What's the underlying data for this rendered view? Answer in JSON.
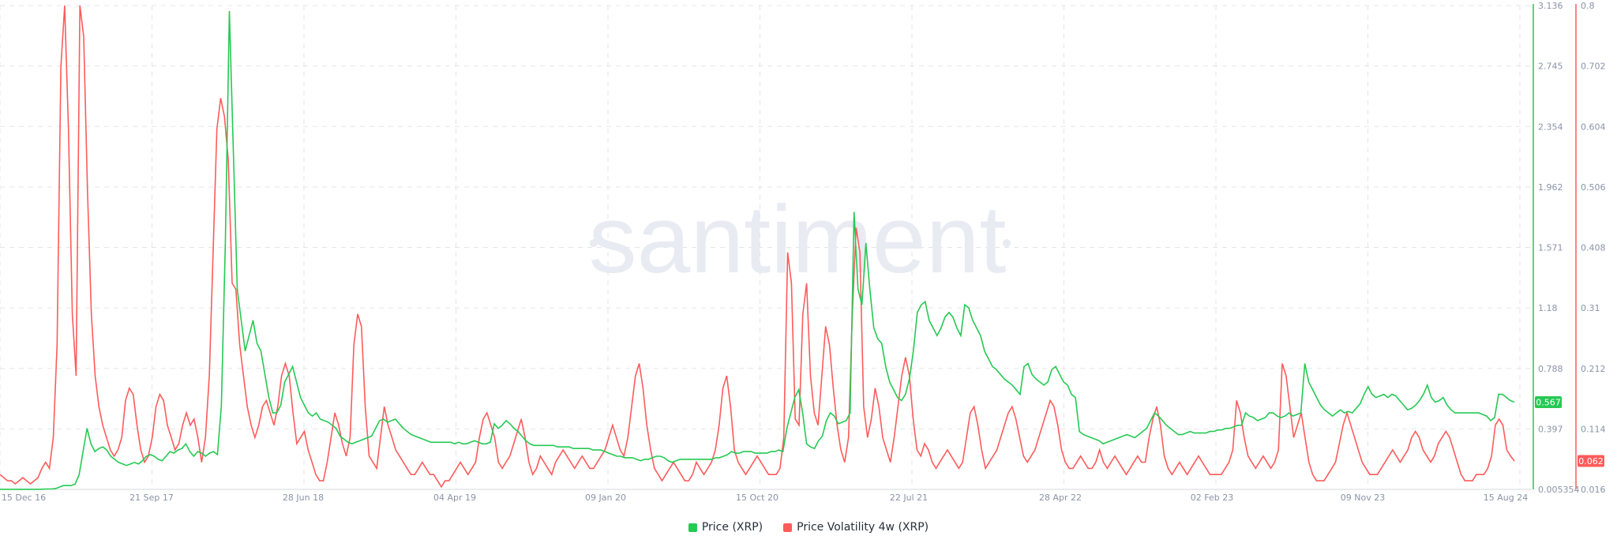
{
  "watermark": "santiment",
  "colors": {
    "price": "#26c953",
    "volatility": "#ff5b5b",
    "grid": "#e3e5e9",
    "axis_text": "#8a93a6",
    "watermark": "#e8ebf2"
  },
  "chart_data": {
    "type": "line",
    "x_ticks": [
      "15 Dec 16",
      "21 Sep 17",
      "28 Jun 18",
      "04 Apr 19",
      "09 Jan 20",
      "15 Oct 20",
      "22 Jul 21",
      "28 Apr 22",
      "02 Feb 23",
      "09 Nov 23",
      "15 Aug 24"
    ],
    "x_start_label": "15 Dec 16",
    "x_end_label": "15 Aug 24",
    "grid": true,
    "legend_position": "bottom-center",
    "axes": {
      "price": {
        "ticks": [
          "0.005354",
          "0.397",
          "0.788",
          "1.18",
          "1.571",
          "1.962",
          "2.354",
          "2.745",
          "3.136"
        ],
        "range": [
          0.005354,
          3.136
        ]
      },
      "volatility": {
        "ticks": [
          "0.016",
          "0.114",
          "0.212",
          "0.31",
          "0.408",
          "0.506",
          "0.604",
          "0.702",
          "0.8"
        ],
        "range": [
          0.016,
          0.8
        ]
      }
    },
    "series": [
      {
        "name": "Price (XRP)",
        "axis": "price",
        "last_label": "0.567",
        "values": [
          0.006,
          0.006,
          0.006,
          0.006,
          0.006,
          0.006,
          0.006,
          0.006,
          0.006,
          0.006,
          0.006,
          0.007,
          0.008,
          0.008,
          0.01,
          0.02,
          0.03,
          0.03,
          0.03,
          0.04,
          0.1,
          0.25,
          0.4,
          0.3,
          0.25,
          0.27,
          0.28,
          0.26,
          0.22,
          0.2,
          0.18,
          0.17,
          0.16,
          0.17,
          0.18,
          0.17,
          0.19,
          0.22,
          0.23,
          0.22,
          0.2,
          0.19,
          0.22,
          0.25,
          0.24,
          0.26,
          0.27,
          0.3,
          0.25,
          0.22,
          0.25,
          0.24,
          0.22,
          0.24,
          0.25,
          0.23,
          0.55,
          1.6,
          3.1,
          2.2,
          1.3,
          1.1,
          0.9,
          1.0,
          1.1,
          0.95,
          0.9,
          0.75,
          0.6,
          0.5,
          0.5,
          0.55,
          0.7,
          0.75,
          0.8,
          0.7,
          0.6,
          0.55,
          0.5,
          0.48,
          0.5,
          0.46,
          0.45,
          0.44,
          0.42,
          0.4,
          0.35,
          0.33,
          0.31,
          0.3,
          0.31,
          0.32,
          0.33,
          0.34,
          0.35,
          0.4,
          0.45,
          0.46,
          0.44,
          0.45,
          0.46,
          0.43,
          0.4,
          0.38,
          0.36,
          0.35,
          0.34,
          0.33,
          0.32,
          0.31,
          0.31,
          0.31,
          0.31,
          0.31,
          0.31,
          0.3,
          0.31,
          0.3,
          0.3,
          0.31,
          0.32,
          0.31,
          0.3,
          0.3,
          0.31,
          0.43,
          0.4,
          0.42,
          0.45,
          0.43,
          0.4,
          0.38,
          0.35,
          0.32,
          0.3,
          0.29,
          0.29,
          0.29,
          0.29,
          0.29,
          0.29,
          0.28,
          0.28,
          0.28,
          0.28,
          0.27,
          0.27,
          0.27,
          0.27,
          0.27,
          0.26,
          0.26,
          0.26,
          0.25,
          0.24,
          0.23,
          0.22,
          0.22,
          0.21,
          0.21,
          0.21,
          0.2,
          0.19,
          0.2,
          0.2,
          0.21,
          0.22,
          0.22,
          0.21,
          0.19,
          0.18,
          0.19,
          0.2,
          0.2,
          0.2,
          0.2,
          0.2,
          0.2,
          0.2,
          0.2,
          0.2,
          0.21,
          0.21,
          0.22,
          0.23,
          0.25,
          0.24,
          0.24,
          0.25,
          0.25,
          0.25,
          0.24,
          0.24,
          0.24,
          0.24,
          0.25,
          0.25,
          0.26,
          0.25,
          0.4,
          0.5,
          0.6,
          0.65,
          0.5,
          0.3,
          0.28,
          0.27,
          0.32,
          0.35,
          0.45,
          0.5,
          0.48,
          0.43,
          0.44,
          0.45,
          0.5,
          1.8,
          1.3,
          1.2,
          1.6,
          1.3,
          1.05,
          0.98,
          0.95,
          0.8,
          0.7,
          0.65,
          0.6,
          0.58,
          0.62,
          0.72,
          0.9,
          1.15,
          1.2,
          1.22,
          1.1,
          1.05,
          1.0,
          1.05,
          1.12,
          1.15,
          1.12,
          1.05,
          1.0,
          1.2,
          1.18,
          1.1,
          1.05,
          1.0,
          0.9,
          0.85,
          0.8,
          0.78,
          0.75,
          0.72,
          0.7,
          0.68,
          0.65,
          0.62,
          0.8,
          0.82,
          0.75,
          0.72,
          0.7,
          0.68,
          0.7,
          0.78,
          0.8,
          0.75,
          0.7,
          0.68,
          0.62,
          0.6,
          0.38,
          0.36,
          0.35,
          0.34,
          0.33,
          0.32,
          0.3,
          0.31,
          0.32,
          0.33,
          0.34,
          0.35,
          0.36,
          0.35,
          0.34,
          0.36,
          0.38,
          0.4,
          0.45,
          0.5,
          0.48,
          0.45,
          0.42,
          0.4,
          0.38,
          0.36,
          0.36,
          0.37,
          0.38,
          0.37,
          0.37,
          0.37,
          0.37,
          0.38,
          0.38,
          0.39,
          0.39,
          0.4,
          0.4,
          0.41,
          0.42,
          0.42,
          0.5,
          0.48,
          0.47,
          0.45,
          0.46,
          0.47,
          0.5,
          0.5,
          0.48,
          0.47,
          0.48,
          0.5,
          0.48,
          0.49,
          0.5,
          0.82,
          0.7,
          0.65,
          0.6,
          0.55,
          0.52,
          0.5,
          0.48,
          0.5,
          0.52,
          0.5,
          0.51,
          0.5,
          0.53,
          0.56,
          0.62,
          0.67,
          0.62,
          0.6,
          0.61,
          0.62,
          0.6,
          0.62,
          0.61,
          0.58,
          0.55,
          0.52,
          0.53,
          0.55,
          0.58,
          0.62,
          0.68,
          0.6,
          0.57,
          0.58,
          0.6,
          0.55,
          0.52,
          0.5,
          0.5,
          0.5,
          0.5,
          0.5,
          0.5,
          0.5,
          0.49,
          0.48,
          0.45,
          0.47,
          0.62,
          0.62,
          0.6,
          0.58,
          0.57
        ]
      },
      {
        "name": "Price Volatility 4w (XRP)",
        "axis": "volatility",
        "last_label": "0.062",
        "values": [
          0.04,
          0.035,
          0.03,
          0.03,
          0.025,
          0.03,
          0.035,
          0.03,
          0.025,
          0.03,
          0.035,
          0.05,
          0.06,
          0.05,
          0.1,
          0.25,
          0.7,
          0.8,
          0.6,
          0.3,
          0.2,
          0.8,
          0.75,
          0.5,
          0.3,
          0.2,
          0.15,
          0.12,
          0.1,
          0.08,
          0.07,
          0.08,
          0.1,
          0.16,
          0.18,
          0.17,
          0.12,
          0.08,
          0.06,
          0.07,
          0.1,
          0.15,
          0.17,
          0.16,
          0.12,
          0.1,
          0.08,
          0.09,
          0.12,
          0.14,
          0.12,
          0.13,
          0.1,
          0.06,
          0.1,
          0.2,
          0.4,
          0.6,
          0.65,
          0.62,
          0.55,
          0.35,
          0.34,
          0.25,
          0.2,
          0.15,
          0.12,
          0.1,
          0.12,
          0.15,
          0.16,
          0.14,
          0.12,
          0.15,
          0.2,
          0.22,
          0.2,
          0.14,
          0.09,
          0.1,
          0.11,
          0.08,
          0.06,
          0.04,
          0.03,
          0.03,
          0.06,
          0.1,
          0.14,
          0.12,
          0.09,
          0.07,
          0.1,
          0.25,
          0.3,
          0.28,
          0.15,
          0.07,
          0.06,
          0.05,
          0.1,
          0.15,
          0.12,
          0.1,
          0.08,
          0.07,
          0.06,
          0.05,
          0.04,
          0.04,
          0.05,
          0.06,
          0.05,
          0.04,
          0.04,
          0.03,
          0.02,
          0.03,
          0.03,
          0.04,
          0.05,
          0.06,
          0.05,
          0.04,
          0.05,
          0.06,
          0.1,
          0.13,
          0.14,
          0.12,
          0.1,
          0.06,
          0.05,
          0.06,
          0.07,
          0.09,
          0.11,
          0.13,
          0.1,
          0.06,
          0.04,
          0.05,
          0.07,
          0.06,
          0.05,
          0.04,
          0.06,
          0.07,
          0.08,
          0.07,
          0.06,
          0.05,
          0.06,
          0.07,
          0.06,
          0.05,
          0.05,
          0.06,
          0.07,
          0.08,
          0.1,
          0.12,
          0.1,
          0.08,
          0.07,
          0.1,
          0.15,
          0.2,
          0.22,
          0.18,
          0.12,
          0.08,
          0.05,
          0.04,
          0.03,
          0.04,
          0.05,
          0.06,
          0.05,
          0.04,
          0.03,
          0.03,
          0.04,
          0.06,
          0.05,
          0.04,
          0.05,
          0.06,
          0.08,
          0.12,
          0.18,
          0.2,
          0.15,
          0.08,
          0.06,
          0.05,
          0.04,
          0.05,
          0.06,
          0.07,
          0.06,
          0.05,
          0.04,
          0.04,
          0.04,
          0.05,
          0.1,
          0.4,
          0.35,
          0.13,
          0.12,
          0.3,
          0.35,
          0.2,
          0.14,
          0.12,
          0.2,
          0.28,
          0.25,
          0.18,
          0.12,
          0.08,
          0.06,
          0.1,
          0.3,
          0.44,
          0.4,
          0.15,
          0.1,
          0.13,
          0.18,
          0.15,
          0.1,
          0.08,
          0.06,
          0.1,
          0.15,
          0.2,
          0.23,
          0.2,
          0.13,
          0.08,
          0.07,
          0.09,
          0.08,
          0.06,
          0.05,
          0.06,
          0.07,
          0.08,
          0.07,
          0.06,
          0.05,
          0.06,
          0.1,
          0.14,
          0.15,
          0.12,
          0.08,
          0.05,
          0.06,
          0.07,
          0.08,
          0.1,
          0.12,
          0.14,
          0.15,
          0.13,
          0.1,
          0.07,
          0.06,
          0.07,
          0.08,
          0.1,
          0.12,
          0.14,
          0.16,
          0.15,
          0.12,
          0.08,
          0.06,
          0.05,
          0.05,
          0.06,
          0.07,
          0.06,
          0.05,
          0.05,
          0.06,
          0.08,
          0.06,
          0.05,
          0.06,
          0.07,
          0.06,
          0.05,
          0.04,
          0.05,
          0.06,
          0.07,
          0.06,
          0.06,
          0.1,
          0.13,
          0.15,
          0.12,
          0.07,
          0.05,
          0.04,
          0.05,
          0.06,
          0.05,
          0.04,
          0.05,
          0.06,
          0.07,
          0.06,
          0.05,
          0.04,
          0.04,
          0.04,
          0.04,
          0.05,
          0.06,
          0.08,
          0.16,
          0.14,
          0.1,
          0.07,
          0.06,
          0.05,
          0.06,
          0.07,
          0.06,
          0.05,
          0.06,
          0.08,
          0.22,
          0.2,
          0.15,
          0.1,
          0.12,
          0.14,
          0.1,
          0.06,
          0.04,
          0.03,
          0.03,
          0.03,
          0.04,
          0.05,
          0.06,
          0.09,
          0.12,
          0.14,
          0.12,
          0.1,
          0.08,
          0.06,
          0.05,
          0.04,
          0.04,
          0.04,
          0.05,
          0.06,
          0.07,
          0.08,
          0.07,
          0.06,
          0.07,
          0.08,
          0.1,
          0.11,
          0.1,
          0.08,
          0.07,
          0.06,
          0.07,
          0.09,
          0.1,
          0.11,
          0.1,
          0.08,
          0.06,
          0.04,
          0.03,
          0.03,
          0.03,
          0.04,
          0.04,
          0.04,
          0.05,
          0.07,
          0.12,
          0.13,
          0.12,
          0.08,
          0.07,
          0.062
        ]
      }
    ]
  },
  "legend": {
    "price_label": "Price (XRP)",
    "volatility_label": "Price Volatility 4w (XRP)"
  }
}
